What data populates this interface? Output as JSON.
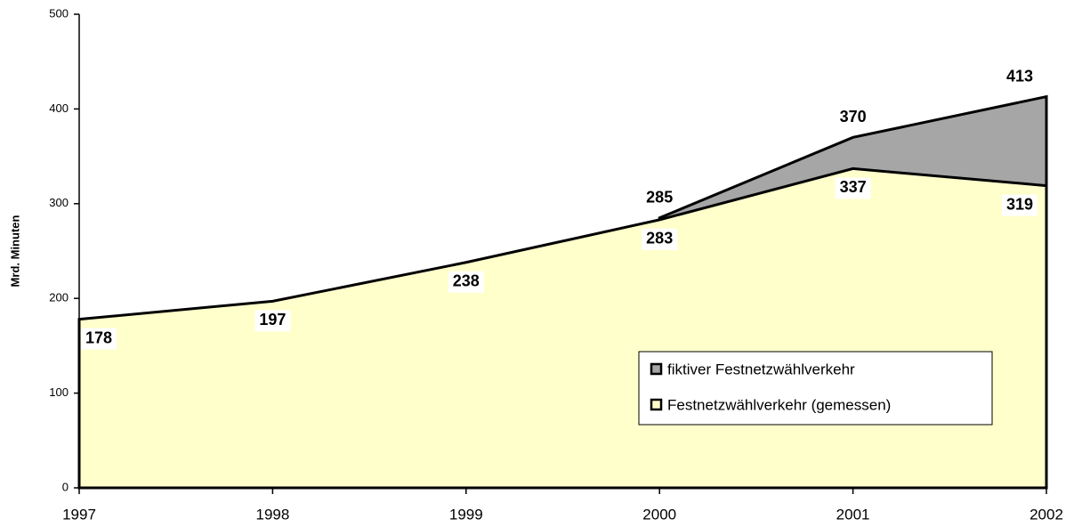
{
  "chart_data": {
    "type": "area",
    "y_label": "Mrd. Minuten",
    "x": [
      "1997",
      "1998",
      "1999",
      "2000",
      "2001",
      "2002"
    ],
    "series": [
      {
        "name": "fiktiver Festnetzwählverkehr",
        "color": "#a6a6a6",
        "values": [
          null,
          null,
          null,
          285,
          370,
          413
        ]
      },
      {
        "name": "Festnetzwählverkehr (gemessen)",
        "color": "#ffffcc",
        "values": [
          178,
          197,
          238,
          283,
          337,
          319
        ]
      }
    ],
    "ylim": [
      0,
      500
    ],
    "yticks": [
      0,
      100,
      200,
      300,
      400,
      500
    ],
    "legend": "lower right"
  }
}
